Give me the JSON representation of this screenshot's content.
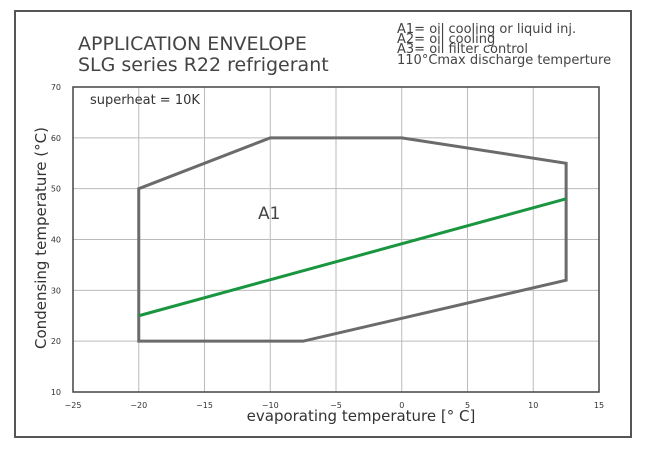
{
  "chart_data": {
    "type": "line",
    "title": "APPLICATION ENVELOPE",
    "subtitle": "SLG series R22 refrigerant",
    "xlabel": "evaporating temperature [° C]",
    "ylabel": "Condensing temperature (°C)",
    "xlim": [
      -25,
      15
    ],
    "ylim": [
      10,
      70
    ],
    "xticks": [
      -25,
      -20,
      -15,
      -10,
      -5,
      0,
      5,
      10,
      15
    ],
    "yticks": [
      10,
      20,
      30,
      40,
      50,
      60,
      70
    ],
    "grid": true,
    "annotation": "superheat = 10K",
    "region_label": "A1",
    "legend": [
      "A1= oil cooling or liquid inj.",
      "A2= oil cooling",
      "A3= oil filter control",
      "110°Cmax discharge temperture"
    ],
    "envelope": [
      {
        "x": -20,
        "y": 20
      },
      {
        "x": -20,
        "y": 50
      },
      {
        "x": -10,
        "y": 60
      },
      {
        "x": 0,
        "y": 60
      },
      {
        "x": 12.5,
        "y": 55
      },
      {
        "x": 12.5,
        "y": 32
      },
      {
        "x": 0,
        "y": 24.5
      },
      {
        "x": -7.5,
        "y": 20
      }
    ],
    "series": [
      {
        "x": [
          -20,
          12.5
        ],
        "y": [
          25,
          48
        ],
        "color": "#1a9641"
      }
    ],
    "colors": {
      "envelope": "#6b6b6b",
      "line": "#1a9641",
      "grid": "#bbbbbb",
      "axis": "#444444"
    }
  }
}
